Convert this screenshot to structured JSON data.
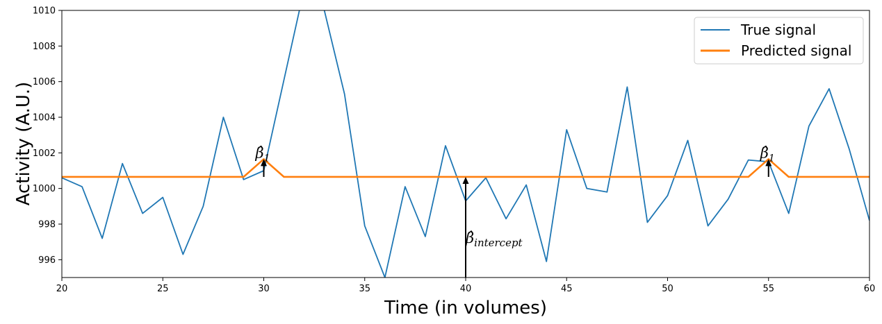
{
  "chart_data": {
    "type": "line",
    "title": "",
    "xlabel": "Time (in volumes)",
    "ylabel": "Activity (A.U.)",
    "xlim": [
      20,
      60
    ],
    "ylim": [
      995,
      1010
    ],
    "xticks": [
      20,
      25,
      30,
      35,
      40,
      45,
      50,
      55,
      60
    ],
    "yticks": [
      996,
      998,
      1000,
      1002,
      1004,
      1006,
      1008,
      1010
    ],
    "grid": false,
    "legend": "top-right",
    "series": [
      {
        "name": "True signal",
        "color": "#1f77b4",
        "x": [
          20,
          21,
          22,
          23,
          24,
          25,
          26,
          27,
          28,
          29,
          30,
          31,
          32,
          33,
          34,
          35,
          36,
          37,
          38,
          39,
          40,
          41,
          42,
          43,
          44,
          45,
          46,
          47,
          48,
          49,
          50,
          51,
          52,
          53,
          54,
          55,
          56,
          57,
          58,
          59,
          60
        ],
        "values": [
          1000.6,
          1000.1,
          997.2,
          1001.4,
          998.6,
          999.5,
          996.3,
          999.0,
          1004.0,
          1000.5,
          1001.0,
          1006.1,
          1011.2,
          1010.0,
          1005.3,
          997.9,
          995.0,
          1000.1,
          997.3,
          1002.4,
          999.3,
          1000.6,
          998.3,
          1000.2,
          995.9,
          1003.3,
          1000.0,
          999.8,
          1005.7,
          998.1,
          999.6,
          1002.7,
          997.9,
          999.4,
          1001.6,
          1001.5,
          998.6,
          1003.5,
          1005.6,
          1002.2,
          998.2
        ]
      },
      {
        "name": "Predicted signal",
        "color": "#ff7f0e",
        "x": [
          20,
          29,
          30,
          31,
          54,
          55,
          56,
          60
        ],
        "values": [
          1000.65,
          1000.65,
          1001.65,
          1000.65,
          1000.65,
          1001.65,
          1000.65,
          1000.65
        ]
      }
    ],
    "annotations": [
      {
        "label": "β̂1",
        "base": "β̂",
        "sub": "1",
        "x": 30,
        "y_from": 1000.65,
        "y_to": 1001.65
      },
      {
        "label": "β̂intercept",
        "base": "β̂",
        "sub": "intercept",
        "x": 40,
        "y_from": 995,
        "y_to": 1000.65
      },
      {
        "label": "β̂1",
        "base": "β̂",
        "sub": "1",
        "x": 55,
        "y_from": 1000.65,
        "y_to": 1001.65
      }
    ]
  }
}
